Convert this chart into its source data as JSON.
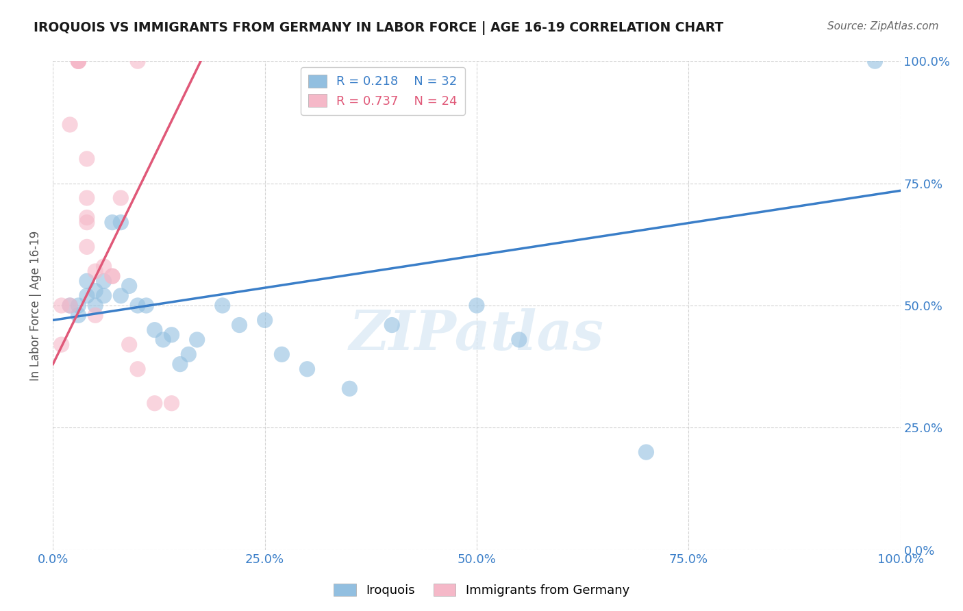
{
  "title": "IROQUOIS VS IMMIGRANTS FROM GERMANY IN LABOR FORCE | AGE 16-19 CORRELATION CHART",
  "source": "Source: ZipAtlas.com",
  "ylabel": "In Labor Force | Age 16-19",
  "blue_label": "Iroquois",
  "pink_label": "Immigrants from Germany",
  "blue_R": 0.218,
  "blue_N": 32,
  "pink_R": 0.737,
  "pink_N": 24,
  "blue_color": "#92bfe0",
  "pink_color": "#f5b8c8",
  "blue_line_color": "#3a7ec8",
  "pink_line_color": "#e05878",
  "watermark": "ZIPatlas",
  "xlim": [
    0.0,
    1.0
  ],
  "ylim": [
    0.0,
    1.0
  ],
  "xtick_vals": [
    0.0,
    0.25,
    0.5,
    0.75,
    1.0
  ],
  "xtick_labels": [
    "0.0%",
    "25.0%",
    "50.0%",
    "75.0%",
    "100.0%"
  ],
  "ytick_vals": [
    0.0,
    0.25,
    0.5,
    0.75,
    1.0
  ],
  "ytick_labels": [
    "0.0%",
    "25.0%",
    "50.0%",
    "75.0%",
    "100.0%"
  ],
  "blue_x": [
    0.02,
    0.03,
    0.04,
    0.04,
    0.05,
    0.05,
    0.06,
    0.06,
    0.07,
    0.08,
    0.08,
    0.09,
    0.1,
    0.11,
    0.12,
    0.13,
    0.14,
    0.15,
    0.16,
    0.17,
    0.2,
    0.22,
    0.25,
    0.27,
    0.3,
    0.35,
    0.4,
    0.5,
    0.55,
    0.7,
    0.97,
    0.03
  ],
  "blue_y": [
    0.5,
    0.5,
    0.55,
    0.52,
    0.53,
    0.5,
    0.55,
    0.52,
    0.67,
    0.67,
    0.52,
    0.54,
    0.5,
    0.5,
    0.45,
    0.43,
    0.44,
    0.38,
    0.4,
    0.43,
    0.5,
    0.46,
    0.47,
    0.4,
    0.37,
    0.33,
    0.46,
    0.5,
    0.43,
    0.2,
    1.0,
    0.48
  ],
  "pink_x": [
    0.01,
    0.01,
    0.02,
    0.02,
    0.03,
    0.03,
    0.03,
    0.03,
    0.04,
    0.04,
    0.04,
    0.04,
    0.05,
    0.06,
    0.07,
    0.07,
    0.08,
    0.09,
    0.1,
    0.12,
    0.14,
    0.04,
    0.05,
    0.1
  ],
  "pink_y": [
    0.5,
    0.42,
    0.87,
    0.5,
    1.0,
    1.0,
    1.0,
    1.0,
    0.8,
    0.72,
    0.67,
    0.68,
    0.57,
    0.58,
    0.56,
    0.56,
    0.72,
    0.42,
    0.37,
    0.3,
    0.3,
    0.62,
    0.48,
    1.0
  ],
  "blue_line_x0": 0.0,
  "blue_line_y0": 0.47,
  "blue_line_x1": 1.0,
  "blue_line_y1": 0.735,
  "pink_line_x0": 0.0,
  "pink_line_y0": 0.38,
  "pink_line_x1": 0.18,
  "pink_line_y1": 1.02
}
